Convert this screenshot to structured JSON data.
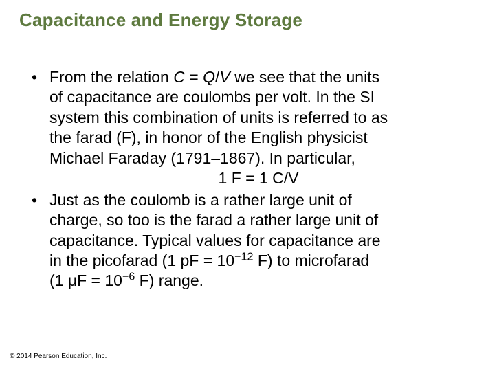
{
  "title": "Capacitance and Energy Storage",
  "bullets": [
    {
      "lines": [
        [
          {
            "t": "From the relation "
          },
          {
            "t": "C",
            "italic": true
          },
          {
            "t": " = "
          },
          {
            "t": "Q",
            "italic": true
          },
          {
            "t": "/"
          },
          {
            "t": "V",
            "italic": true
          },
          {
            "t": " we see that the units"
          }
        ],
        [
          {
            "t": "of capacitance are coulombs per volt. In the SI"
          }
        ],
        [
          {
            "t": "system this combination of units is referred to as"
          }
        ],
        [
          {
            "t": "the farad (F), in honor of the English physicist"
          }
        ],
        [
          {
            "t": "Michael Faraday (1791–1867). In particular,"
          }
        ]
      ],
      "center_line": "1 F = 1 C/V"
    },
    {
      "lines": [
        [
          {
            "t": "Just as the coulomb is a rather large unit of"
          }
        ],
        [
          {
            "t": "charge, so too is the farad a rather large unit of"
          }
        ],
        [
          {
            "t": "capacitance. Typical values for capacitance are"
          }
        ],
        [
          {
            "t": "in the picofarad (1 pF = 10"
          },
          {
            "t": "−12",
            "sup": true
          },
          {
            "t": " F) to microfarad"
          }
        ],
        [
          {
            "t": "(1 μF = 10"
          },
          {
            "t": "−6",
            "sup": true
          },
          {
            "t": " F) range."
          }
        ]
      ]
    }
  ],
  "footer": "© 2014 Pearson Education, Inc.",
  "colors": {
    "title": "#5e7a3f",
    "text": "#000000",
    "background": "#ffffff"
  },
  "font_sizes": {
    "title_pt": 26,
    "body_pt": 23,
    "footer_pt": 10
  }
}
